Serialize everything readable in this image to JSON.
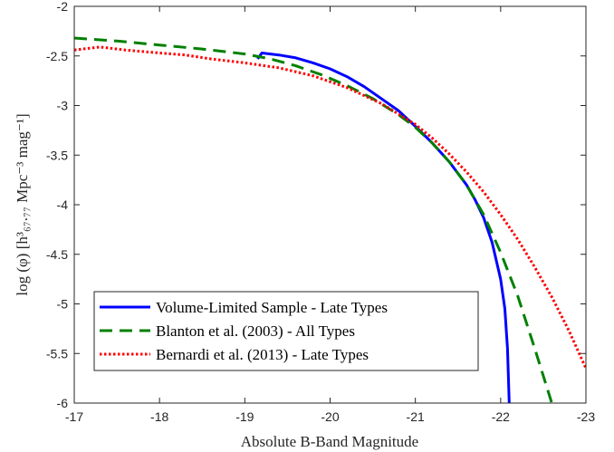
{
  "chart_data": {
    "type": "line",
    "xlabel": "Absolute B-Band Magnitude",
    "ylabel": "log (φ) [h³₆₇.₇₇ Mpc⁻³ mag⁻¹]",
    "xlim": [
      -17,
      -23
    ],
    "ylim": [
      -6,
      -2
    ],
    "x_axis_reversed": true,
    "xticks": [
      -17,
      -18,
      -19,
      -20,
      -21,
      -22,
      -23
    ],
    "yticks": [
      -6,
      -5.5,
      -5,
      -4.5,
      -4,
      -3.5,
      -3,
      -2.5,
      -2
    ],
    "xtick_labels": [
      "-17",
      "-18",
      "-19",
      "-20",
      "-21",
      "-22",
      "-23"
    ],
    "ytick_labels": [
      "-6",
      "-5.5",
      "-5",
      "-4.5",
      "-4",
      "-3.5",
      "-3",
      "-2.5",
      "-2"
    ],
    "grid": false,
    "legend_position": "lower-left",
    "series": [
      {
        "name": "Volume-Limited Sample - Late Types",
        "color": "#0000ff",
        "style": "solid",
        "x": [
          -19.15,
          -19.2,
          -19.4,
          -19.6,
          -19.8,
          -20.0,
          -20.2,
          -20.4,
          -20.6,
          -20.8,
          -21.0,
          -21.2,
          -21.4,
          -21.6,
          -21.7,
          -21.8,
          -21.9,
          -22.0,
          -22.05,
          -22.08,
          -22.1
        ],
        "y": [
          -2.53,
          -2.47,
          -2.49,
          -2.52,
          -2.57,
          -2.63,
          -2.71,
          -2.81,
          -2.93,
          -3.05,
          -3.21,
          -3.38,
          -3.57,
          -3.8,
          -3.95,
          -4.13,
          -4.38,
          -4.75,
          -5.05,
          -5.45,
          -6.0
        ]
      },
      {
        "name": "Blanton et al. (2003) - All Types",
        "color": "#008000",
        "style": "dashed",
        "x": [
          -17.0,
          -17.5,
          -18.0,
          -18.5,
          -19.0,
          -19.3,
          -19.6,
          -19.9,
          -20.2,
          -20.5,
          -20.8,
          -21.0,
          -21.2,
          -21.4,
          -21.6,
          -21.8,
          -22.0,
          -22.2,
          -22.4,
          -22.6
        ],
        "y": [
          -2.32,
          -2.35,
          -2.39,
          -2.43,
          -2.48,
          -2.53,
          -2.6,
          -2.69,
          -2.8,
          -2.93,
          -3.09,
          -3.22,
          -3.38,
          -3.57,
          -3.8,
          -4.1,
          -4.48,
          -4.92,
          -5.45,
          -6.0
        ]
      },
      {
        "name": "Bernardi et al. (2013) - Late Types",
        "color": "#ff0000",
        "style": "dotted",
        "x": [
          -17.0,
          -17.3,
          -17.6,
          -18.0,
          -18.3,
          -18.6,
          -19.0,
          -19.4,
          -19.8,
          -20.2,
          -20.6,
          -21.0,
          -21.2,
          -21.4,
          -21.6,
          -21.8,
          -22.0,
          -22.2,
          -22.4,
          -22.6,
          -22.8,
          -23.0
        ],
        "y": [
          -2.44,
          -2.41,
          -2.44,
          -2.47,
          -2.49,
          -2.53,
          -2.57,
          -2.62,
          -2.7,
          -2.82,
          -2.98,
          -3.19,
          -3.33,
          -3.49,
          -3.67,
          -3.87,
          -4.1,
          -4.35,
          -4.63,
          -4.93,
          -5.27,
          -5.65
        ]
      }
    ]
  }
}
